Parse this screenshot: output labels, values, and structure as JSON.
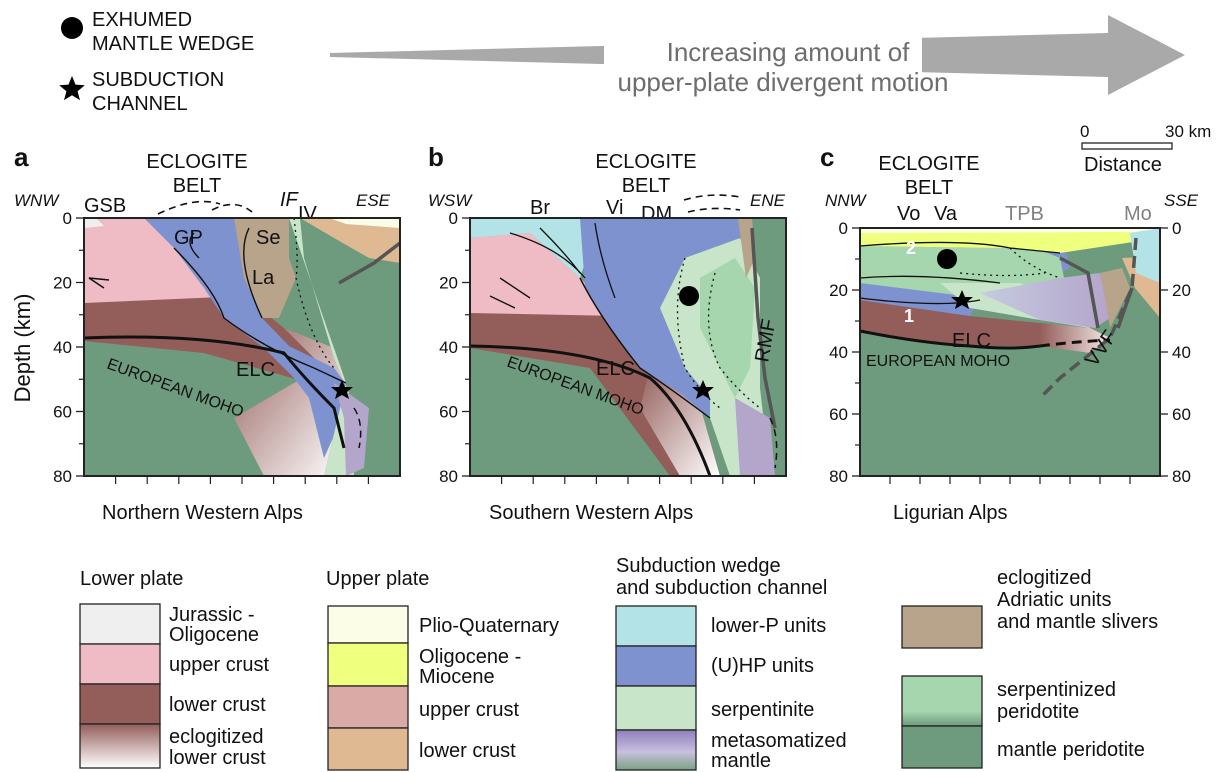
{
  "colors": {
    "mantle_peridotite": "#6e9a7d",
    "serpentinized_peridotite": "#a6d6ad",
    "serpentinite": "#c8e4c9",
    "hp_units": "#7e92cf",
    "lower_p_units": "#b3e3e6",
    "lower_plate_upper_crust": "#efbcc5",
    "lower_plate_lower_crust": "#935e5a",
    "upper_plate_upper_crust": "#d9aaa6",
    "upper_plate_lower_crust": "#deb992",
    "plio_quaternary": "#fbfde6",
    "oligocene_miocene": "#efff7e",
    "eclogitized_adriatic": "#b7a48a",
    "jurassic_oligocene": "#efefef",
    "arrow": "#a9a9a9"
  },
  "top_legend": {
    "circle_label_1": "EXHUMED",
    "circle_label_2": "MANTLE WEDGE",
    "star_label_1": "SUBDUCTION",
    "star_label_2": "CHANNEL",
    "arrow_text_1": "Increasing amount of",
    "arrow_text_2": "upper-plate divergent motion"
  },
  "scale_bar": {
    "start": "0",
    "end": "30 km",
    "label": "Distance"
  },
  "axis": {
    "ylabel": "Depth (km)",
    "ticks": [
      "0",
      "20",
      "40",
      "60",
      "80"
    ]
  },
  "panels": [
    {
      "letter": "a",
      "title_1": "ECLOGITE",
      "title_2": "BELT",
      "dir_left": "WNW",
      "dir_right": "ESE",
      "caption": "Northern Western Alps",
      "labels": {
        "gsb": "GSB",
        "if": "IF",
        "iv": "IV",
        "gp": "GP",
        "se": "Se",
        "la": "La",
        "elc": "ELC",
        "moho": "EUROPEAN MOHO"
      }
    },
    {
      "letter": "b",
      "title_1": "ECLOGITE",
      "title_2": "BELT",
      "dir_left": "WSW",
      "dir_right": "ENE",
      "caption": "Southern Western Alps",
      "labels": {
        "br": "Br",
        "vi": "Vi",
        "dm": "DM",
        "elc": "ELC",
        "rmf": "RMF",
        "moho": "EUROPEAN MOHO"
      }
    },
    {
      "letter": "c",
      "title_1": "ECLOGITE",
      "title_2": "BELT",
      "dir_left": "NNW",
      "dir_right": "SSE",
      "caption": "Ligurian Alps",
      "labels": {
        "vo": "Vo",
        "va": "Va",
        "tpb": "TPB",
        "mo": "Mo",
        "n2": "2",
        "n1": "1",
        "elc": "ELC",
        "vvf": "VVF",
        "moho": "EUROPEAN MOHO"
      }
    }
  ],
  "legend": {
    "lower_plate": {
      "heading": "Lower plate",
      "items": [
        {
          "line1": "Jurassic -",
          "line2": "Oligocene"
        },
        {
          "line1": "upper crust",
          "line2": ""
        },
        {
          "line1": "lower crust",
          "line2": ""
        },
        {
          "line1": "eclogitized",
          "line2": "lower crust"
        }
      ]
    },
    "upper_plate": {
      "heading": "Upper plate",
      "items": [
        {
          "line1": "Plio-Quaternary",
          "line2": ""
        },
        {
          "line1": "Oligocene -",
          "line2": "Miocene"
        },
        {
          "line1": "upper crust",
          "line2": ""
        },
        {
          "line1": "lower crust",
          "line2": ""
        }
      ]
    },
    "wedge": {
      "heading_1": "Subduction wedge",
      "heading_2": "and subduction channel",
      "items": [
        {
          "line1": "lower-P units",
          "line2": ""
        },
        {
          "line1": "(U)HP units",
          "line2": ""
        },
        {
          "line1": "serpentinite",
          "line2": ""
        },
        {
          "line1": "metasomatized",
          "line2": "mantle"
        }
      ]
    },
    "other": {
      "items": [
        {
          "line1": "eclogitized",
          "line2": "Adriatic units",
          "line3": "and mantle slivers"
        },
        {
          "line1": "serpentinized",
          "line2": "peridotite",
          "line3": ""
        },
        {
          "line1": "mantle peridotite",
          "line2": "",
          "line3": ""
        }
      ]
    }
  }
}
